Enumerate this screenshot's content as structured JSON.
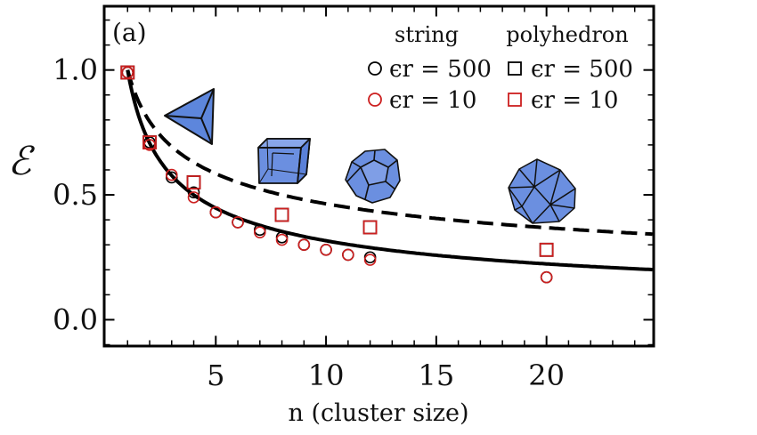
{
  "chart_data": {
    "type": "scatter",
    "panel_label": "(a)",
    "xlabel": "n (cluster size)",
    "ylabel": "ℰ",
    "xlim": [
      0,
      24.8
    ],
    "ylim": [
      -0.1,
      1.25
    ],
    "xticks": [
      5,
      10,
      15,
      20
    ],
    "yticks": [
      0.0,
      0.5,
      1.0
    ],
    "xtick_labels": [
      "5",
      "10",
      "15",
      "20"
    ],
    "ytick_labels": [
      "0.0",
      "0.5",
      "1.0"
    ],
    "grid": false,
    "legend": {
      "placement": "top-right",
      "string_header": "string",
      "polyhedron_header": "polyhedron",
      "entries": [
        {
          "label": "ϵr = 500",
          "group": "string",
          "marker": "circle",
          "color": "#000000"
        },
        {
          "label": "ϵr = 10",
          "group": "string",
          "marker": "circle",
          "color": "#cc1f1f"
        },
        {
          "label": "ϵr = 500",
          "group": "polyhedron",
          "marker": "square",
          "color": "#000000"
        },
        {
          "label": "ϵr = 10",
          "group": "polyhedron",
          "marker": "square",
          "color": "#cc1f1f"
        }
      ]
    },
    "series": [
      {
        "label": "string, ϵr = 500",
        "marker": "circle",
        "color": "#000000",
        "x": [
          1,
          2,
          3,
          4,
          5,
          6,
          7,
          8,
          9,
          10,
          11,
          12,
          20
        ],
        "y": [
          0.99,
          0.71,
          0.57,
          0.51,
          0.43,
          0.39,
          0.36,
          0.33,
          0.3,
          0.28,
          0.26,
          0.25,
          0.17
        ]
      },
      {
        "label": "string, ϵr = 10",
        "marker": "circle",
        "color": "#cc1f1f",
        "x": [
          1,
          2,
          3,
          4,
          5,
          6,
          7,
          8,
          9,
          10,
          11,
          12,
          20
        ],
        "y": [
          0.99,
          0.7,
          0.58,
          0.49,
          0.43,
          0.39,
          0.35,
          0.32,
          0.3,
          0.28,
          0.26,
          0.24,
          0.17
        ]
      },
      {
        "label": "polyhedron, ϵr = 500",
        "marker": "square",
        "color": "#000000",
        "x": [
          1,
          2,
          4,
          8,
          12,
          20
        ],
        "y": [
          0.99,
          0.71,
          0.55,
          0.42,
          0.37,
          0.28
        ]
      },
      {
        "label": "polyhedron, ϵr = 10",
        "marker": "square",
        "color": "#cc1f1f",
        "x": [
          1,
          2,
          4,
          8,
          12,
          20
        ],
        "y": [
          0.99,
          0.71,
          0.55,
          0.42,
          0.37,
          0.28
        ]
      }
    ],
    "curves": [
      {
        "style": "solid",
        "color": "#000000",
        "formula": "1/sqrt(n)"
      },
      {
        "style": "dashed",
        "color": "#000000",
        "formula": "n^(-1/3)"
      }
    ],
    "insets": [
      {
        "shape": "tetrahedron",
        "n": 4,
        "color": "#6b8fe0"
      },
      {
        "shape": "cube",
        "n": 8,
        "color": "#6b8fe0"
      },
      {
        "shape": "dodecahedron",
        "n": 12,
        "color": "#6b8fe0"
      },
      {
        "shape": "icosahedron",
        "n": 20,
        "color": "#6b8fe0"
      }
    ]
  }
}
